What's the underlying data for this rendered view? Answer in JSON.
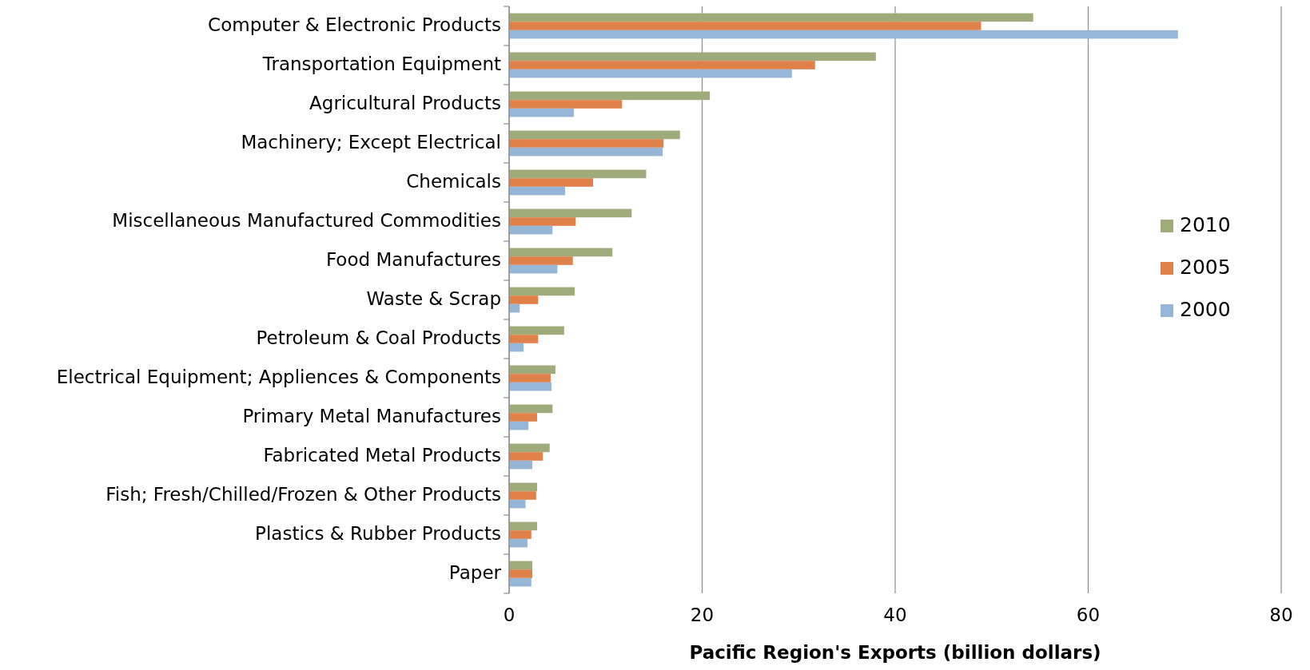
{
  "chart_data": {
    "type": "bar",
    "orientation": "horizontal",
    "xlabel": "Pacific Region's Exports (billion dollars)",
    "categories": [
      "Computer & Electronic Products",
      "Transportation Equipment",
      "Agricultural Products",
      "Machinery; Except Electrical",
      "Chemicals",
      "Miscellaneous Manufactured Commodities",
      "Food Manufactures",
      "Waste & Scrap",
      "Petroleum & Coal Products",
      "Electrical Equipment; Appliences & Components",
      "Primary Metal Manufactures",
      "Fabricated Metal Products",
      "Fish; Fresh/Chilled/Frozen & Other Products",
      "Plastics & Rubber Products",
      "Paper"
    ],
    "series": [
      {
        "name": "2010",
        "color": "#a0ab7c",
        "values": [
          54.3,
          38.0,
          20.8,
          17.7,
          14.2,
          12.7,
          10.7,
          6.8,
          5.7,
          4.8,
          4.5,
          4.2,
          2.9,
          2.9,
          2.4
        ]
      },
      {
        "name": "2005",
        "color": "#e0814a",
        "values": [
          48.9,
          31.7,
          11.7,
          16.0,
          8.7,
          6.9,
          6.6,
          3.0,
          3.0,
          4.3,
          2.9,
          3.5,
          2.8,
          2.3,
          2.4
        ]
      },
      {
        "name": "2000",
        "color": "#95b6d6",
        "values": [
          69.3,
          29.3,
          6.7,
          15.9,
          5.8,
          4.5,
          5.0,
          1.1,
          1.5,
          4.4,
          2.0,
          2.4,
          1.7,
          1.9,
          2.3
        ]
      }
    ],
    "xlim": [
      0,
      80
    ],
    "xticks": [
      0,
      20,
      40,
      60,
      80
    ],
    "grid": "x",
    "legend": "right"
  }
}
